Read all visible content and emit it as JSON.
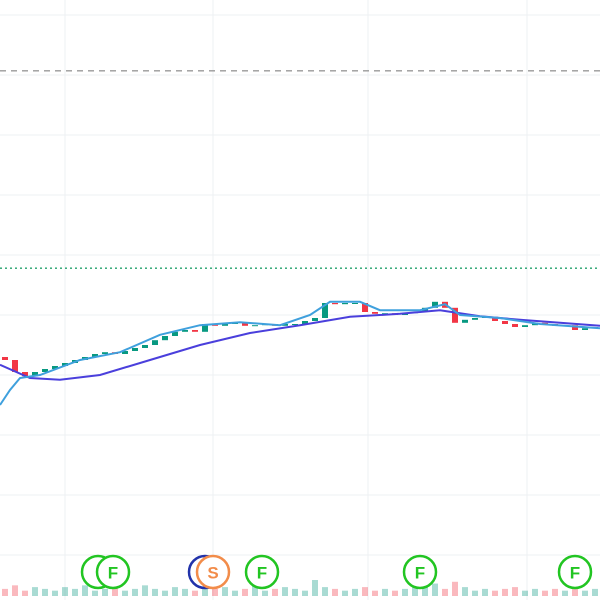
{
  "chart_data": {
    "type": "candlestick",
    "xlim": [
      -0.5,
      59.5
    ],
    "ylim": [
      0.25,
      10.25
    ],
    "xticks": [
      6,
      20.8,
      36.3,
      52.2
    ],
    "yticks": [
      1,
      2,
      3,
      4,
      5,
      6,
      7,
      8,
      9,
      10
    ],
    "grid": true,
    "up_color": "#089981",
    "down_color": "#f23645",
    "open": [
      4.3,
      4.25,
      4.05,
      3.98,
      4.05,
      4.1,
      4.15,
      4.2,
      4.25,
      4.3,
      4.35,
      4.38,
      4.35,
      4.4,
      4.45,
      4.5,
      4.58,
      4.65,
      4.72,
      4.75,
      4.72,
      4.85,
      4.82,
      4.85,
      4.88,
      4.82,
      4.83,
      4.85,
      4.82,
      4.85,
      4.85,
      4.9,
      4.95,
      5.2,
      5.18,
      5.2,
      5.2,
      5.05,
      5.02,
      5.03,
      5.0,
      5.03,
      5.05,
      5.12,
      5.22,
      5.12,
      4.87,
      4.92,
      4.95,
      4.97,
      4.9,
      4.85,
      4.8,
      4.83,
      4.87,
      4.85,
      4.82,
      4.83,
      4.75,
      4.78
    ],
    "close": [
      4.25,
      4.05,
      3.98,
      4.05,
      4.1,
      4.15,
      4.2,
      4.25,
      4.3,
      4.35,
      4.38,
      4.35,
      4.4,
      4.45,
      4.5,
      4.58,
      4.65,
      4.72,
      4.75,
      4.72,
      4.85,
      4.82,
      4.85,
      4.88,
      4.82,
      4.83,
      4.85,
      4.82,
      4.85,
      4.85,
      4.9,
      4.95,
      5.2,
      5.18,
      5.2,
      5.2,
      5.05,
      5.02,
      5.03,
      5.0,
      5.03,
      5.05,
      5.12,
      5.22,
      5.12,
      4.87,
      4.92,
      4.95,
      4.97,
      4.9,
      4.85,
      4.8,
      4.83,
      4.87,
      4.85,
      4.82,
      4.83,
      4.75,
      4.78,
      4.8
    ],
    "series": [
      {
        "color": "#4a3fdc",
        "x": [
          -0.5,
          2.5,
          5.5,
          9.5,
          14.5,
          19.5,
          24.5,
          29.5,
          34.5,
          39.5,
          43.5,
          47.5,
          51.5,
          55.5,
          59.5
        ],
        "values": [
          4.17,
          3.95,
          3.92,
          4.0,
          4.25,
          4.5,
          4.7,
          4.83,
          4.97,
          5.02,
          5.08,
          4.98,
          4.92,
          4.87,
          4.82
        ]
      },
      {
        "color": "#3fa0dd",
        "x": [
          -0.5,
          0.5,
          1.5,
          3.5,
          7.5,
          11.5,
          15.5,
          19.5,
          23.5,
          27.5,
          30.5,
          32.5,
          35.5,
          37.5,
          41.5,
          44,
          45.5,
          49.5,
          53.5,
          59.5
        ],
        "values": [
          3.5,
          3.75,
          3.95,
          4.0,
          4.25,
          4.38,
          4.67,
          4.83,
          4.88,
          4.83,
          5.0,
          5.22,
          5.22,
          5.08,
          5.08,
          5.18,
          5.0,
          4.95,
          4.85,
          4.78
        ]
      }
    ],
    "volume": [
      4,
      6,
      3,
      5,
      4,
      3,
      5,
      4,
      6,
      3,
      4,
      5,
      3,
      4,
      6,
      4,
      3,
      5,
      4,
      3,
      8,
      4,
      5,
      3,
      4,
      6,
      3,
      4,
      5,
      4,
      3,
      9,
      5,
      4,
      3,
      4,
      5,
      3,
      4,
      3,
      4,
      5,
      6,
      7,
      4,
      8,
      5,
      3,
      4,
      3,
      4,
      5,
      3,
      4,
      3,
      4,
      3,
      4,
      3,
      4
    ],
    "hlines": [
      {
        "value": 9.07,
        "color": "#999999",
        "dash": "6,5"
      },
      {
        "value": 5.78,
        "color": "#22a06b",
        "dash": "2,3"
      }
    ],
    "markers": [
      {
        "x": 10.8,
        "label": "F",
        "color": "#22c522"
      },
      {
        "x": 20.8,
        "label": "S",
        "color": "#f28c4a"
      },
      {
        "x": 25.7,
        "label": "F",
        "color": "#22c522"
      },
      {
        "x": 41.5,
        "label": "F",
        "color": "#22c522"
      },
      {
        "x": 57,
        "label": "F",
        "color": "#22c522"
      }
    ]
  }
}
